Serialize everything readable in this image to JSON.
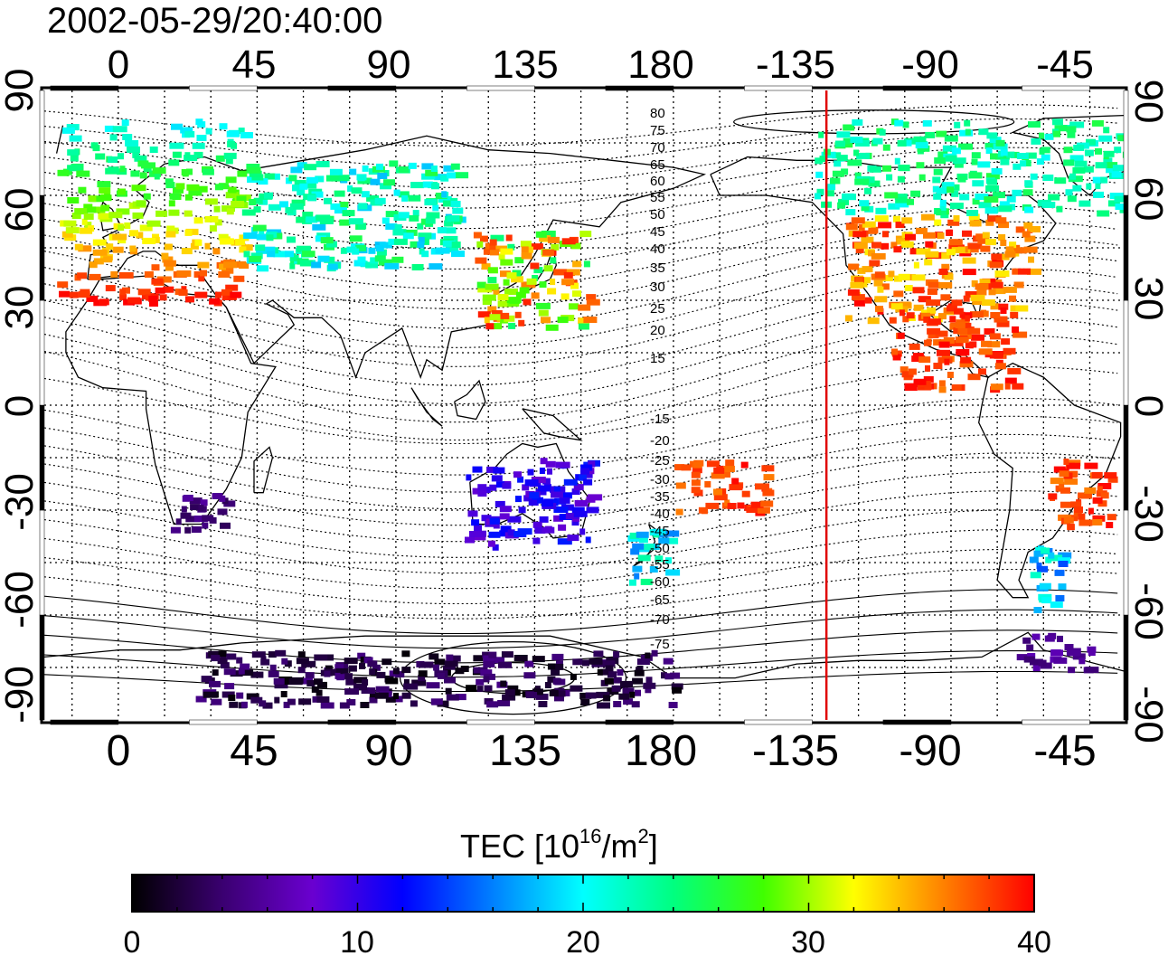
{
  "title": "2002-05-29/20:40:00",
  "map": {
    "top_lon_ticks": [
      "0",
      "45",
      "90",
      "135",
      "180",
      "-135",
      "-90",
      "-45"
    ],
    "bottom_lon_ticks": [
      "0",
      "45",
      "90",
      "135",
      "180",
      "-135",
      "-90",
      "-45"
    ],
    "left_lat_ticks": [
      "90",
      "60",
      "30",
      "0",
      "-30",
      "-60",
      "-90"
    ],
    "right_lat_ticks": [
      "90",
      "60",
      "30",
      "0",
      "-30",
      "-60",
      "-90"
    ],
    "lon_range": [
      -24,
      326
    ],
    "lat_range": [
      -90,
      90
    ],
    "grid": true,
    "marker_line_lon": -130.4,
    "marker_line_color": "#e00000",
    "contour_labels_north": [
      "80",
      "75",
      "70",
      "65",
      "60",
      "55",
      "50",
      "45",
      "40",
      "35",
      "30",
      "25",
      "20",
      "15"
    ],
    "contour_labels_south": [
      "-15",
      "-20",
      "-25",
      "-30",
      "-35",
      "-40",
      "-45",
      "-50",
      "-55",
      "-60",
      "-65",
      "-70",
      "-75"
    ]
  },
  "colorbar": {
    "label_main": "TEC  [10",
    "label_exp1": "16",
    "label_mid": "/m",
    "label_exp2": "2",
    "label_end": "]",
    "ticks": [
      "0",
      "10",
      "20",
      "30",
      "40"
    ],
    "min": 0,
    "max": 40,
    "stops": [
      "#000000",
      "#3a0070",
      "#6a00d0",
      "#0000ff",
      "#0080ff",
      "#00ffff",
      "#00ff80",
      "#40ff00",
      "#ffff00",
      "#ff8000",
      "#ff0000"
    ]
  },
  "chart_data": {
    "type": "heatmap",
    "title": "2002-05-29/20:40:00",
    "value_label": "TEC [10^16/m^2]",
    "value_range": [
      0,
      40
    ],
    "regions": [
      {
        "lon_range": [
          -20,
          40
        ],
        "lat_range": [
          30,
          82
        ],
        "tec_range": [
          20,
          40
        ],
        "gradient": "lat"
      },
      {
        "lon_range": [
          40,
          110
        ],
        "lat_range": [
          40,
          70
        ],
        "tec_range": [
          18,
          26
        ]
      },
      {
        "lon_range": [
          115,
          152
        ],
        "lat_range": [
          23,
          50
        ],
        "tec_range": [
          24,
          40
        ]
      },
      {
        "lon_range": [
          -125,
          -65
        ],
        "lat_range": [
          25,
          55
        ],
        "tec_range": [
          32,
          40
        ]
      },
      {
        "lon_range": [
          -110,
          -70
        ],
        "lat_range": [
          5,
          28
        ],
        "tec_range": [
          36,
          40
        ]
      },
      {
        "lon_range": [
          -135,
          -25
        ],
        "lat_range": [
          55,
          82
        ],
        "tec_range": [
          20,
          26
        ]
      },
      {
        "lon_range": [
          -60,
          -38
        ],
        "lat_range": [
          -35,
          -15
        ],
        "tec_range": [
          36,
          40
        ]
      },
      {
        "lon_range": [
          -65,
          -55
        ],
        "lat_range": [
          -58,
          -40
        ],
        "tec_range": [
          14,
          22
        ]
      },
      {
        "lon_range": [
          -180,
          -150
        ],
        "lat_range": [
          -30,
          -15
        ],
        "tec_range": [
          36,
          40
        ]
      },
      {
        "lon_range": [
          112,
          153
        ],
        "lat_range": [
          -40,
          -15
        ],
        "tec_range": [
          8,
          13
        ]
      },
      {
        "lon_range": [
          15,
          35
        ],
        "lat_range": [
          -35,
          -25
        ],
        "tec_range": [
          3,
          6
        ]
      },
      {
        "lon_range": [
          -70,
          -45
        ],
        "lat_range": [
          -75,
          -65
        ],
        "tec_range": [
          4,
          7
        ]
      },
      {
        "lon_range": [
          25,
          180
        ],
        "lat_range": [
          -85,
          -70
        ],
        "tec_range": [
          0,
          5
        ]
      },
      {
        "lon_range": [
          165,
          178
        ],
        "lat_range": [
          -50,
          -35
        ],
        "tec_range": [
          16,
          24
        ]
      }
    ]
  }
}
